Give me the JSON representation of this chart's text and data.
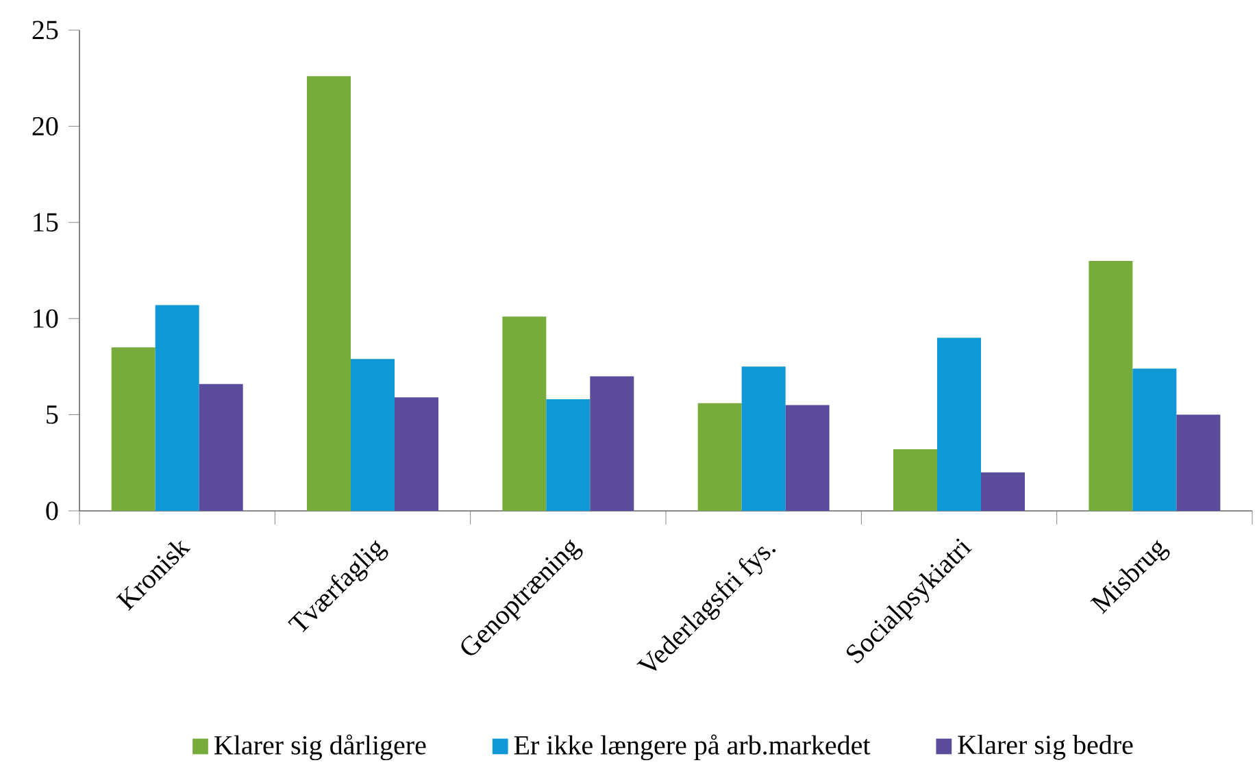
{
  "chart_data": {
    "type": "bar",
    "categories": [
      "Kronisk",
      "Tværfaglig",
      "Genoptræning",
      "Vederlagsfri fys.",
      "Socialpsykiatri",
      "Misbrug"
    ],
    "series": [
      {
        "name": "Klarer sig dårligere",
        "color": "#77ac3d",
        "values": [
          8.5,
          22.6,
          10.1,
          5.6,
          3.2,
          13.0
        ]
      },
      {
        "name": "Er ikke længere på arb.markedet",
        "color": "#0f97d6",
        "values": [
          10.7,
          7.9,
          5.8,
          7.5,
          9.0,
          7.4
        ]
      },
      {
        "name": "Klarer sig bedre",
        "color": "#5b4b9b",
        "values": [
          6.6,
          5.9,
          7.0,
          5.5,
          2.0,
          5.0
        ]
      }
    ],
    "ylim": [
      0,
      25
    ],
    "yticks": [
      0,
      5,
      10,
      15,
      20,
      25
    ],
    "grid": false,
    "legend": "bottom"
  }
}
